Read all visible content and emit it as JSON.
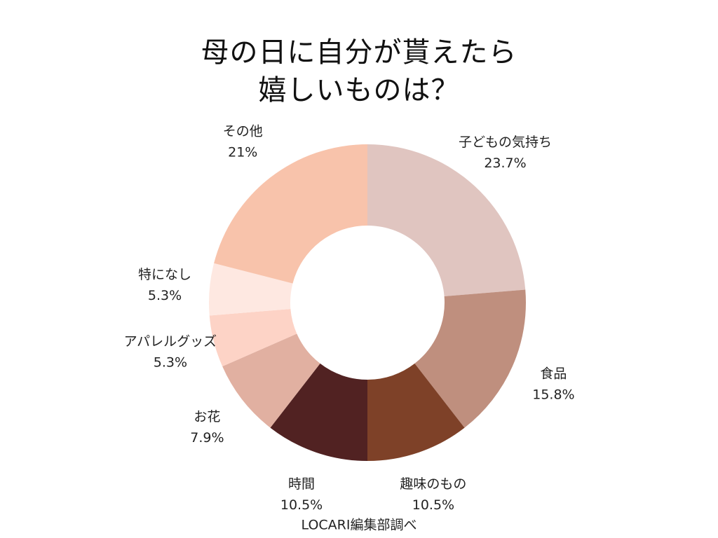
{
  "chart_data": {
    "type": "pie",
    "title": "母の日に自分が貰えたら\n嬉しいものは？",
    "categories": [
      "子どもの気持ち",
      "食品",
      "趣味のもの",
      "時間",
      "お花",
      "アパレルグッズ",
      "特になし",
      "その他"
    ],
    "values": [
      23.7,
      15.8,
      10.5,
      10.5,
      7.9,
      5.3,
      5.3,
      21
    ],
    "value_labels": [
      "23.7%",
      "15.8%",
      "10.5%",
      "10.5%",
      "7.9%",
      "5.3%",
      "5.3%",
      "21%"
    ],
    "colors": [
      "#e0c5c0",
      "#bf8f7e",
      "#7e4128",
      "#512222",
      "#e1b0a1",
      "#fdd3c6",
      "#fee8e1",
      "#f8c3ab"
    ],
    "source": "LOCARI編集部調べ"
  }
}
